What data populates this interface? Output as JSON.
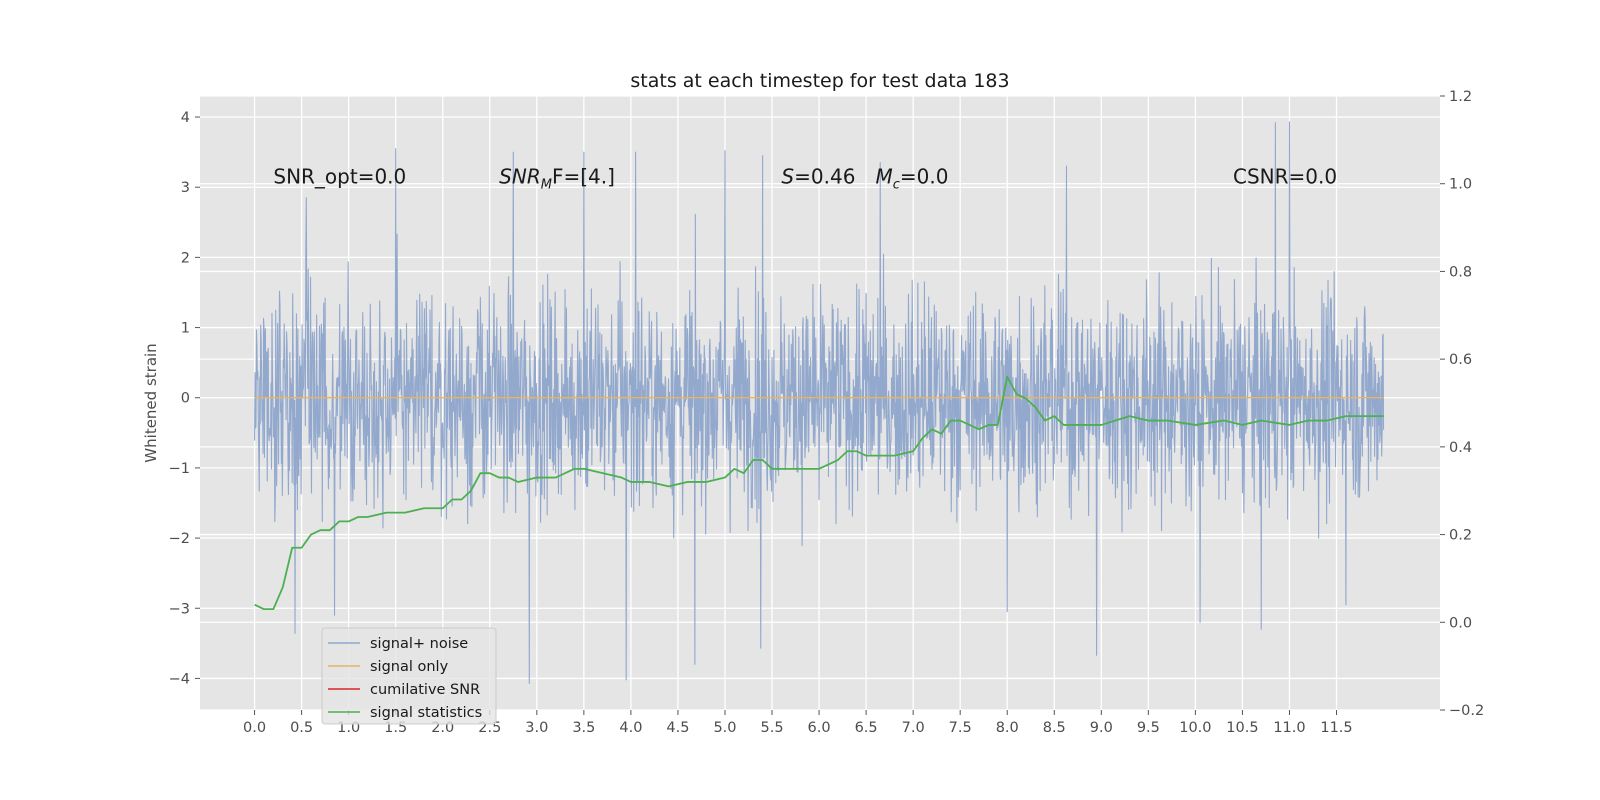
{
  "chart_data": {
    "type": "line",
    "title": "stats at each timestep for test data 183",
    "ylabel": "Whitened strain",
    "xlim": [
      -0.58,
      12.6
    ],
    "ylim": [
      -4.45,
      4.3
    ],
    "y2lim": [
      -0.2,
      1.2
    ],
    "x_ticks": [
      0.0,
      0.5,
      1.0,
      1.5,
      2.0,
      2.5,
      3.0,
      3.5,
      4.0,
      4.5,
      5.0,
      5.5,
      6.0,
      6.5,
      7.0,
      7.5,
      8.0,
      8.5,
      9.0,
      9.5,
      10.0,
      10.5,
      11.0,
      11.5
    ],
    "x_tick_labels": [
      "0.0",
      "0.5",
      "1.0",
      "1.5",
      "2.0",
      "2.5",
      "3.0",
      "3.5",
      "4.0",
      "4.5",
      "5.0",
      "5.5",
      "6.0",
      "6.5",
      "7.0",
      "7.5",
      "8.0",
      "8.5",
      "9.0",
      "9.5",
      "10.0",
      "10.5",
      "11.0",
      "11.5"
    ],
    "y_ticks": [
      -4,
      -3,
      -2,
      -1,
      0,
      1,
      2,
      3,
      4
    ],
    "y_tick_labels": [
      "−4",
      "−3",
      "−2",
      "−1",
      "0",
      "1",
      "2",
      "3",
      "4"
    ],
    "y2_ticks": [
      -0.2,
      0.0,
      0.2,
      0.4,
      0.6,
      0.8,
      1.0,
      1.2
    ],
    "y2_tick_labels": [
      "−0.2",
      "0.0",
      "0.2",
      "0.4",
      "0.6",
      "0.8",
      "1.0",
      "1.2"
    ],
    "grid": true,
    "legend_location": "lower-left",
    "annotations": [
      {
        "text": "SNR_opt=0.0",
        "x": 0.2,
        "y": 3.05
      },
      {
        "text": "SNR_MF=[4.]",
        "x": 2.6,
        "y": 3.05
      },
      {
        "text": "S=0.46",
        "x": 5.6,
        "y": 3.05
      },
      {
        "text": "M_c=0.0",
        "x": 6.6,
        "y": 3.05
      },
      {
        "text": "CSNR=0.0",
        "x": 10.4,
        "y": 3.05
      }
    ],
    "series": [
      {
        "name": "signal+ noise",
        "axis": "left",
        "color": "#92a8cd",
        "x_range": [
          0.0,
          12.0
        ],
        "approx_spread": 1.0,
        "max": 3.93,
        "min": -4.07,
        "peaks": [
          {
            "x": 0.43,
            "y": -3.36
          },
          {
            "x": 0.55,
            "y": 2.85
          },
          {
            "x": 0.85,
            "y": -3.1
          },
          {
            "x": 1.5,
            "y": 3.55
          },
          {
            "x": 2.75,
            "y": 3.5
          },
          {
            "x": 2.92,
            "y": -4.07
          },
          {
            "x": 3.5,
            "y": 3.5
          },
          {
            "x": 3.95,
            "y": -4.02
          },
          {
            "x": 4.05,
            "y": 3.5
          },
          {
            "x": 4.68,
            "y": -3.8
          },
          {
            "x": 5.0,
            "y": 3.52
          },
          {
            "x": 5.38,
            "y": -3.57
          },
          {
            "x": 5.4,
            "y": 3.45
          },
          {
            "x": 6.0,
            "y": 2.75
          },
          {
            "x": 6.0,
            "y": -1.45
          },
          {
            "x": 6.65,
            "y": 3.35
          },
          {
            "x": 8.0,
            "y": -3.05
          },
          {
            "x": 8.63,
            "y": 3.3
          },
          {
            "x": 8.95,
            "y": -3.67
          },
          {
            "x": 10.05,
            "y": -3.2
          },
          {
            "x": 10.7,
            "y": -3.3
          },
          {
            "x": 10.85,
            "y": 3.92
          },
          {
            "x": 11.0,
            "y": 3.93
          },
          {
            "x": 11.6,
            "y": -2.95
          }
        ]
      },
      {
        "name": "signal only",
        "axis": "left",
        "color": "#e8b464",
        "x": [
          0.0,
          12.0
        ],
        "values": [
          0.0,
          0.0
        ]
      },
      {
        "name": "cumilative SNR",
        "axis": "left",
        "color": "#d62728",
        "x": [],
        "values": []
      },
      {
        "name": "signal statistics",
        "axis": "right",
        "color": "#4caf50",
        "x": [
          0.0,
          0.1,
          0.2,
          0.3,
          0.4,
          0.5,
          0.6,
          0.7,
          0.8,
          0.9,
          1.0,
          1.1,
          1.2,
          1.4,
          1.6,
          1.8,
          2.0,
          2.1,
          2.2,
          2.3,
          2.4,
          2.5,
          2.6,
          2.7,
          2.8,
          3.0,
          3.2,
          3.4,
          3.5,
          3.7,
          3.9,
          4.0,
          4.2,
          4.4,
          4.6,
          4.8,
          5.0,
          5.1,
          5.2,
          5.3,
          5.4,
          5.5,
          5.6,
          5.7,
          5.8,
          5.9,
          6.0,
          6.1,
          6.2,
          6.3,
          6.4,
          6.5,
          6.6,
          6.8,
          7.0,
          7.1,
          7.2,
          7.3,
          7.4,
          7.5,
          7.6,
          7.7,
          7.8,
          7.9,
          8.0,
          8.1,
          8.2,
          8.3,
          8.4,
          8.5,
          8.6,
          8.8,
          9.0,
          9.3,
          9.5,
          9.7,
          10.0,
          10.3,
          10.5,
          10.7,
          11.0,
          11.2,
          11.4,
          11.6,
          11.8,
          12.0
        ],
        "values": [
          0.04,
          0.03,
          0.03,
          0.08,
          0.17,
          0.17,
          0.2,
          0.21,
          0.21,
          0.23,
          0.23,
          0.24,
          0.24,
          0.25,
          0.25,
          0.26,
          0.26,
          0.28,
          0.28,
          0.3,
          0.34,
          0.34,
          0.33,
          0.33,
          0.32,
          0.33,
          0.33,
          0.35,
          0.35,
          0.34,
          0.33,
          0.32,
          0.32,
          0.31,
          0.32,
          0.32,
          0.33,
          0.35,
          0.34,
          0.37,
          0.37,
          0.35,
          0.35,
          0.35,
          0.35,
          0.35,
          0.35,
          0.36,
          0.37,
          0.39,
          0.39,
          0.38,
          0.38,
          0.38,
          0.39,
          0.42,
          0.44,
          0.43,
          0.46,
          0.46,
          0.45,
          0.44,
          0.45,
          0.45,
          0.56,
          0.52,
          0.51,
          0.49,
          0.46,
          0.47,
          0.45,
          0.45,
          0.45,
          0.47,
          0.46,
          0.46,
          0.45,
          0.46,
          0.45,
          0.46,
          0.45,
          0.46,
          0.46,
          0.47,
          0.47,
          0.47
        ]
      }
    ]
  }
}
